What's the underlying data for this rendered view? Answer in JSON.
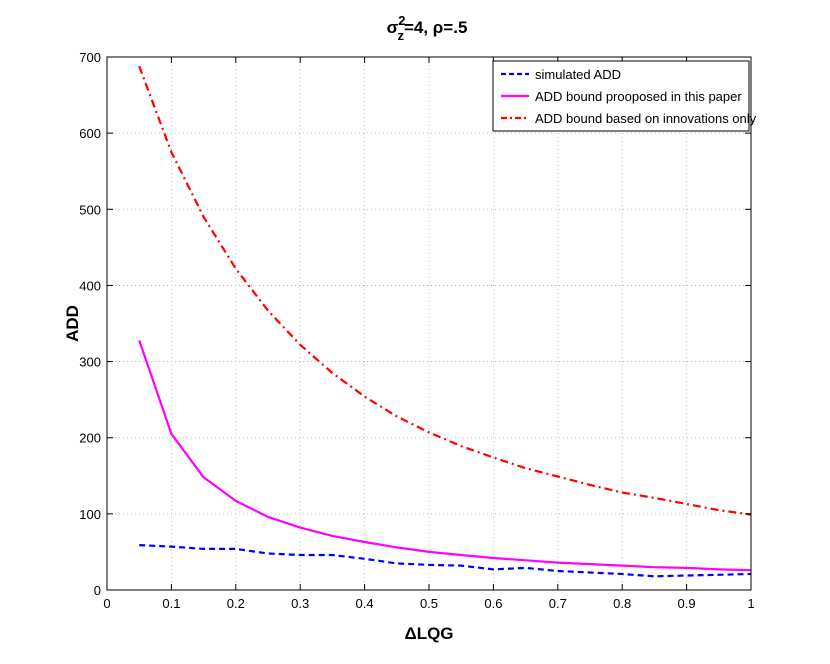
{
  "chart_data": {
    "type": "line",
    "title": "σz²=4, ρ=.5",
    "title_parts": {
      "sigma": "σ",
      "sub": "z",
      "sup": "2",
      "rest": "=4, ρ=.5"
    },
    "xlabel": "ΔLQG",
    "ylabel": "ADD",
    "xlim": [
      0,
      1
    ],
    "ylim": [
      0,
      700
    ],
    "xticks": [
      0,
      0.1,
      0.2,
      0.3,
      0.4,
      0.5,
      0.6,
      0.7,
      0.8,
      0.9,
      1
    ],
    "xtick_labels": [
      "0",
      "0.1",
      "0.2",
      "0.3",
      "0.4",
      "0.5",
      "0.6",
      "0.7",
      "0.8",
      "0.9",
      "1"
    ],
    "yticks": [
      0,
      100,
      200,
      300,
      400,
      500,
      600,
      700
    ],
    "ytick_labels": [
      "0",
      "100",
      "200",
      "300",
      "400",
      "500",
      "600",
      "700"
    ],
    "grid": true,
    "legend_position": "top-right",
    "series": [
      {
        "name": "simulated ADD",
        "color": "#0000ff",
        "style": "dashed",
        "x": [
          0.05,
          0.1,
          0.15,
          0.2,
          0.25,
          0.3,
          0.35,
          0.4,
          0.45,
          0.5,
          0.55,
          0.6,
          0.65,
          0.7,
          0.75,
          0.8,
          0.85,
          0.9,
          0.95,
          1.0
        ],
        "y": [
          59,
          57,
          54,
          54,
          48,
          46,
          46,
          41,
          35,
          33,
          32,
          27,
          29,
          25,
          23,
          21,
          18,
          19,
          20,
          21
        ]
      },
      {
        "name": "ADD bound prooposed in this paper",
        "color": "#ff00ff",
        "style": "solid",
        "x": [
          0.05,
          0.1,
          0.15,
          0.2,
          0.25,
          0.3,
          0.35,
          0.4,
          0.45,
          0.5,
          0.55,
          0.6,
          0.65,
          0.7,
          0.75,
          0.8,
          0.85,
          0.9,
          0.95,
          1.0
        ],
        "y": [
          328,
          205,
          148,
          117,
          96,
          82,
          71,
          63,
          56,
          50,
          46,
          42,
          39,
          36,
          34,
          32,
          30,
          29,
          27,
          26
        ]
      },
      {
        "name": "ADD bound based on innovations only",
        "color": "#ff0000",
        "style": "dashdot",
        "x": [
          0.05,
          0.1,
          0.15,
          0.2,
          0.25,
          0.3,
          0.35,
          0.4,
          0.45,
          0.5,
          0.55,
          0.6,
          0.65,
          0.7,
          0.75,
          0.8,
          0.85,
          0.9,
          0.95,
          1.0
        ],
        "y": [
          688,
          575,
          490,
          422,
          367,
          322,
          285,
          254,
          228,
          207,
          189,
          174,
          160,
          149,
          138,
          128,
          121,
          113,
          105,
          99
        ]
      }
    ]
  }
}
